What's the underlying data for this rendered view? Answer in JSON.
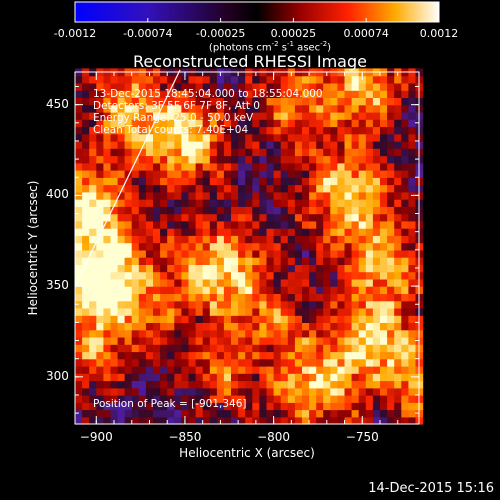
{
  "colorbar": {
    "ticks": [
      "-0.0012",
      "-0.00074",
      "-0.00025",
      "0.00025",
      "0.00074",
      "0.0012"
    ],
    "unit_main": "(photons cm",
    "unit_sup1": "-2",
    "unit_mid": " s",
    "unit_sup2": "-1",
    "unit_end": " asec",
    "unit_sup3": "-2",
    "unit_close": ")"
  },
  "annotations": {
    "line1": "13-Dec-2015 18:45:04.000 to 18:55:04.000",
    "line2": "Detectors: 3F 5F 6F 7F 8F, Att 0",
    "line3": "Energy Range: 25.0 - 50.0 keV",
    "line4": "Clean    Total counts: 7.40E+04",
    "peak": "Position of Peak = [-901,346]"
  },
  "footer": {
    "timestamp": "14-Dec-2015 15:16"
  },
  "colors": {
    "background": "#000000",
    "axes": "#ffffff"
  },
  "chart_data": {
    "type": "heatmap",
    "title": "Reconstructed RHESSI Image",
    "xlabel": "Heliocentric X (arcsec)",
    "ylabel": "Heliocentric Y (arcsec)",
    "xlim": [
      -912,
      -718
    ],
    "ylim": [
      274,
      468
    ],
    "xticks": [
      -900,
      -850,
      -800,
      -750
    ],
    "yticks": [
      300,
      350,
      400,
      450
    ],
    "colormap_range": [
      -0.0012,
      0.0012
    ],
    "peak_position": [
      -901,
      346
    ],
    "hot_spots": [
      {
        "x": -910,
        "y": 395,
        "r": 16,
        "v": 0.0011
      },
      {
        "x": -895,
        "y": 365,
        "r": 18,
        "v": 0.0009
      },
      {
        "x": -903,
        "y": 346,
        "r": 15,
        "v": 0.0012
      },
      {
        "x": -905,
        "y": 310,
        "r": 14,
        "v": 0.0008
      },
      {
        "x": -882,
        "y": 445,
        "r": 18,
        "v": 0.0009
      },
      {
        "x": -850,
        "y": 428,
        "r": 16,
        "v": 0.0011
      },
      {
        "x": -832,
        "y": 355,
        "r": 20,
        "v": 0.0012
      },
      {
        "x": -790,
        "y": 448,
        "r": 16,
        "v": 0.0008
      },
      {
        "x": -750,
        "y": 458,
        "r": 16,
        "v": 0.001
      },
      {
        "x": -760,
        "y": 400,
        "r": 18,
        "v": 0.0011
      },
      {
        "x": -740,
        "y": 360,
        "r": 18,
        "v": 0.0009
      },
      {
        "x": -745,
        "y": 320,
        "r": 16,
        "v": 0.001
      },
      {
        "x": -778,
        "y": 295,
        "r": 18,
        "v": 0.0011
      },
      {
        "x": -720,
        "y": 295,
        "r": 14,
        "v": 0.0009
      },
      {
        "x": -830,
        "y": 300,
        "r": 14,
        "v": 0.0007
      },
      {
        "x": -800,
        "y": 330,
        "r": 12,
        "v": 0.0006
      },
      {
        "x": -872,
        "y": 330,
        "r": 12,
        "v": 0.0006
      }
    ]
  }
}
